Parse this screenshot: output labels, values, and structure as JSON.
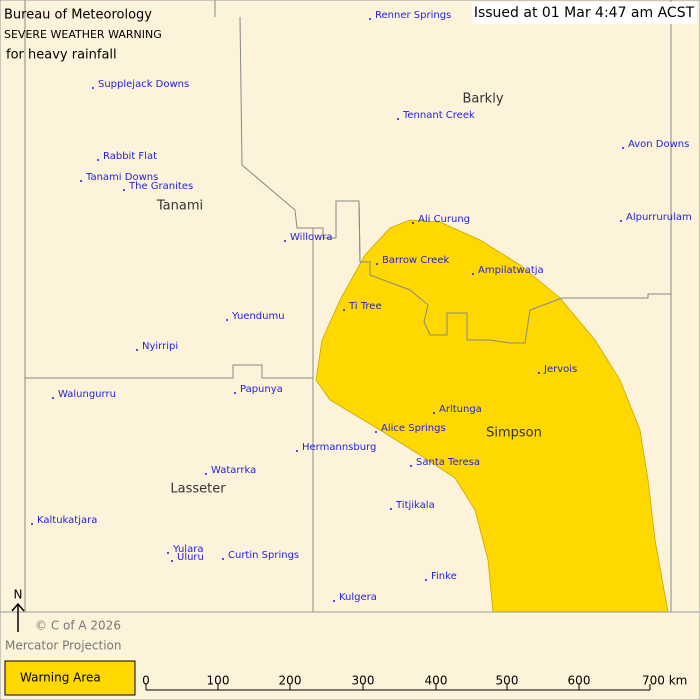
{
  "header": {
    "agency": "Bureau of Meteorology",
    "warning": "SEVERE WEATHER WARNING",
    "hazard": "for heavy rainfall",
    "issued": "Issued at 01 Mar 4:47 am ACST"
  },
  "regions": [
    "Barkly",
    "Tanami",
    "Simpson",
    "Lasseter"
  ],
  "places": [
    "Renner Springs",
    "Supplejack Downs",
    "Tennant Creek",
    "Avon Downs",
    "Rabbit Flat",
    "Tanami Downs",
    "The Granites",
    "Alpurrurulam",
    "Ali Curung",
    "Willowra",
    "Barrow Creek",
    "Ampilatwatja",
    "Ti Tree",
    "Yuendumu",
    "Nyirripi",
    "Jervois",
    "Papunya",
    "Walungurru",
    "Arltunga",
    "Alice Springs",
    "Hermannsburg",
    "Santa Teresa",
    "Watarrka",
    "Titjikala",
    "Kaltukatjara",
    "Yulara",
    "Uluru",
    "Curtin Springs",
    "Finke",
    "Kulgera"
  ],
  "north": "N",
  "copyright": "© C of A 2026",
  "projection": "Mercator Projection",
  "legend": {
    "label": "Warning Area"
  },
  "scale": [
    "0",
    "100",
    "200",
    "300",
    "400",
    "500",
    "600",
    "700 km"
  ]
}
